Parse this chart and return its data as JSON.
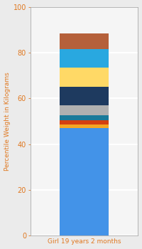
{
  "category": "Girl 19 years 2 months",
  "segments": [
    {
      "value": 47.0,
      "color": "#4393e8"
    },
    {
      "value": 1.5,
      "color": "#f5a623"
    },
    {
      "value": 2.0,
      "color": "#d44010"
    },
    {
      "value": 2.0,
      "color": "#1a7a9a"
    },
    {
      "value": 4.5,
      "color": "#b0b0b0"
    },
    {
      "value": 8.0,
      "color": "#1e3a5f"
    },
    {
      "value": 8.5,
      "color": "#ffd966"
    },
    {
      "value": 8.0,
      "color": "#29a8e0"
    },
    {
      "value": 7.0,
      "color": "#b5603a"
    }
  ],
  "ylabel": "Percentile Weight in Kilograms",
  "ylim": [
    0,
    100
  ],
  "yticks": [
    0,
    20,
    40,
    60,
    80,
    100
  ],
  "bg_color": "#ebebeb",
  "plot_bg_color": "#f5f5f5",
  "grid_color": "#ffffff",
  "ylabel_color": "#e07820",
  "tick_color": "#e07820",
  "xlabel_color": "#e07820",
  "bar_width": 0.5,
  "figsize": [
    2.0,
    3.5
  ],
  "dpi": 100
}
